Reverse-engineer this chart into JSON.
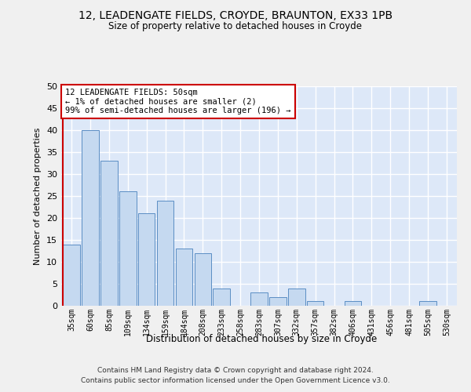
{
  "title1": "12, LEADENGATE FIELDS, CROYDE, BRAUNTON, EX33 1PB",
  "title2": "Size of property relative to detached houses in Croyde",
  "xlabel": "Distribution of detached houses by size in Croyde",
  "ylabel": "Number of detached properties",
  "categories": [
    "35sqm",
    "60sqm",
    "85sqm",
    "109sqm",
    "134sqm",
    "159sqm",
    "184sqm",
    "208sqm",
    "233sqm",
    "258sqm",
    "283sqm",
    "307sqm",
    "332sqm",
    "357sqm",
    "382sqm",
    "406sqm",
    "431sqm",
    "456sqm",
    "481sqm",
    "505sqm",
    "530sqm"
  ],
  "values": [
    14,
    40,
    33,
    26,
    21,
    24,
    13,
    12,
    4,
    0,
    3,
    2,
    4,
    1,
    0,
    1,
    0,
    0,
    0,
    1,
    0
  ],
  "bar_color": "#c5d9f0",
  "bar_edge_color": "#5b8ec4",
  "highlight_color": "#cc0000",
  "annotation_text": "12 LEADENGATE FIELDS: 50sqm\n← 1% of detached houses are smaller (2)\n99% of semi-detached houses are larger (196) →",
  "annotation_box_color": "#cc0000",
  "ylim": [
    0,
    50
  ],
  "yticks": [
    0,
    5,
    10,
    15,
    20,
    25,
    30,
    35,
    40,
    45,
    50
  ],
  "footer1": "Contains HM Land Registry data © Crown copyright and database right 2024.",
  "footer2": "Contains public sector information licensed under the Open Government Licence v3.0.",
  "bg_color": "#dde8f8",
  "grid_color": "#ffffff",
  "fig_bg_color": "#f0f0f0"
}
